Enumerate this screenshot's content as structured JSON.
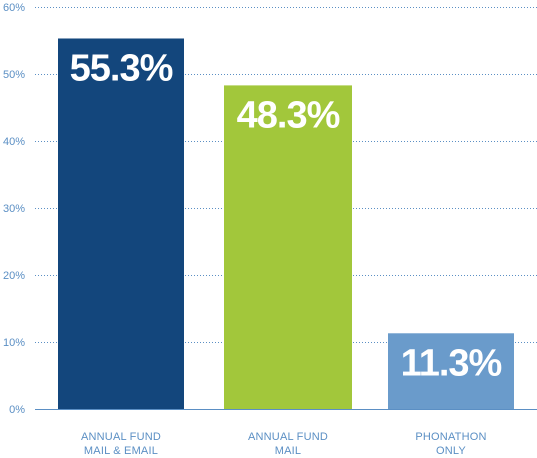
{
  "chart_data": {
    "type": "bar",
    "categories": [
      [
        "ANNUAL FUND",
        "MAIL & EMAIL"
      ],
      [
        "ANNUAL FUND",
        "MAIL"
      ],
      [
        "PHONATHON",
        "ONLY"
      ]
    ],
    "values": [
      55.3,
      48.3,
      11.3
    ],
    "data_labels": [
      "55.3%",
      "48.3%",
      "11.3%"
    ],
    "bar_colors": [
      "#13467c",
      "#a2c73b",
      "#6a9bcb"
    ],
    "y_ticks": [
      "0%",
      "10%",
      "20%",
      "30%",
      "40%",
      "50%",
      "60%"
    ],
    "ylim": [
      0,
      60
    ],
    "grid": true,
    "grid_color": "#5b8fc4",
    "axis_text_color": "#5b8fc4",
    "title": "",
    "xlabel": "",
    "ylabel": ""
  }
}
